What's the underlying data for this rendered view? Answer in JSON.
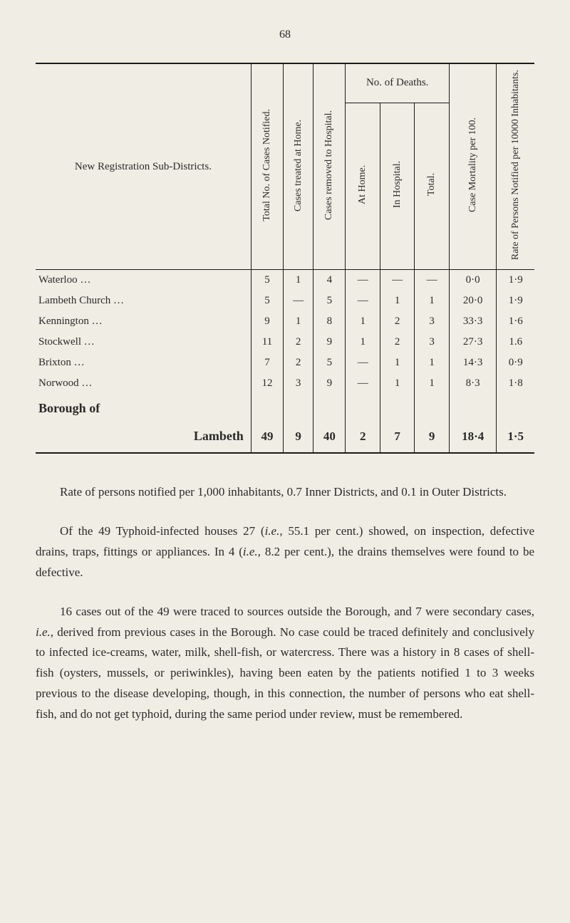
{
  "page_number": "68",
  "table": {
    "headers": {
      "district": "New Registration Sub-Districts.",
      "total_cases": "Total No. of Cases Notified.",
      "treated_home": "Cases treated at Home.",
      "removed_hospital": "Cases removed to Hospital.",
      "deaths_group": "No. of Deaths.",
      "deaths_home": "At Home.",
      "deaths_hospital": "In Hospital.",
      "deaths_total": "Total.",
      "mortality": "Case Mortality per 100.",
      "rate": "Rate of Persons Notified per 10000 Inhabitants."
    },
    "rows": [
      {
        "district": "Waterloo …",
        "total": "5",
        "home": "1",
        "hosp": "4",
        "dhome": "—",
        "dhosp": "—",
        "dtotal": "—",
        "mort": "0·0",
        "rate": "1·9"
      },
      {
        "district": "Lambeth Church …",
        "total": "5",
        "home": "—",
        "hosp": "5",
        "dhome": "—",
        "dhosp": "1",
        "dtotal": "1",
        "mort": "20·0",
        "rate": "1·9"
      },
      {
        "district": "Kennington …",
        "total": "9",
        "home": "1",
        "hosp": "8",
        "dhome": "1",
        "dhosp": "2",
        "dtotal": "3",
        "mort": "33·3",
        "rate": "1·6"
      },
      {
        "district": "Stockwell …",
        "total": "11",
        "home": "2",
        "hosp": "9",
        "dhome": "1",
        "dhosp": "2",
        "dtotal": "3",
        "mort": "27·3",
        "rate": "1.6"
      },
      {
        "district": "Brixton …",
        "total": "7",
        "home": "2",
        "hosp": "5",
        "dhome": "—",
        "dhosp": "1",
        "dtotal": "1",
        "mort": "14·3",
        "rate": "0·9"
      },
      {
        "district": "Norwood …",
        "total": "12",
        "home": "3",
        "hosp": "9",
        "dhome": "—",
        "dhosp": "1",
        "dtotal": "1",
        "mort": "8·3",
        "rate": "1·8"
      }
    ],
    "borough_label_line1": "Borough of",
    "borough_label_line2": "Lambeth",
    "totals": {
      "total": "49",
      "home": "9",
      "hosp": "40",
      "dhome": "2",
      "dhosp": "7",
      "dtotal": "9",
      "mort": "18·4",
      "rate": "1·5"
    }
  },
  "paragraphs": {
    "p1": "Rate of persons notified per 1,000 inhabitants, 0.7 Inner Districts, and 0.1 in Outer Districts.",
    "p2_a": "Of the 49 Typhoid-infected houses 27 (",
    "p2_ie1": "i.e.,",
    "p2_b": " 55.1 per cent.) showed, on inspection, defective drains, traps, fittings or appliances. In 4 (",
    "p2_ie2": "i.e.,",
    "p2_c": " 8.2 per cent.), the drains themselves were found to be defective.",
    "p3_a": "16 cases out of the 49 were traced to sources outside the Borough, and 7 were secondary cases, ",
    "p3_ie": "i.e.,",
    "p3_b": " derived from previous cases in the Borough. No case could be traced definitely and conclusively to infected ice-creams, water, milk, shell-fish, or watercress. There was a history in 8 cases of shell-fish (oysters, mussels, or periwinkles), having been eaten by the patients notified 1 to 3 weeks previous to the disease developing, though, in this connection, the number of persons who eat shell-fish, and do not get typhoid, during the same period under review, must be remembered."
  }
}
